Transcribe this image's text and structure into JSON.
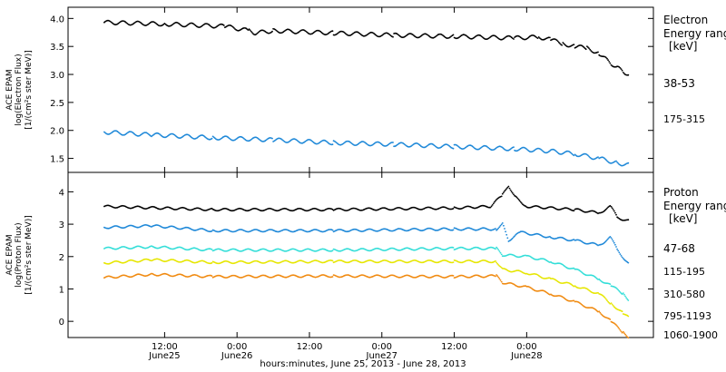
{
  "chart_data": [
    {
      "type": "scatter",
      "panel": "electron",
      "ylabel_lines": [
        "ACE EPAM",
        "log(Electron Flux)",
        "[1/(cm²s ster MeV)]"
      ],
      "ylim": [
        1.25,
        4.2
      ],
      "yticks": [
        1.5,
        2.0,
        2.5,
        3.0,
        3.5,
        4.0
      ],
      "ytick_labels": [
        "1.5",
        "2.0",
        "2.5",
        "3.0",
        "3.5",
        "4.0"
      ],
      "legend_title_lines": [
        "Electron",
        "Energy ranges",
        "[keV]"
      ],
      "series": [
        {
          "name": "38-53",
          "color": "#000000",
          "points": [
            [
              2,
              3.93
            ],
            [
              12,
              3.9
            ],
            [
              22,
              3.86
            ],
            [
              26,
              3.78
            ],
            [
              27,
              3.74
            ],
            [
              30,
              3.78
            ],
            [
              40,
              3.74
            ],
            [
              50,
              3.7
            ],
            [
              60,
              3.68
            ],
            [
              70,
              3.65
            ],
            [
              74,
              3.67
            ],
            [
              76,
              3.62
            ],
            [
              78,
              3.55
            ],
            [
              80,
              3.5
            ],
            [
              82,
              3.47
            ],
            [
              84,
              3.38
            ],
            [
              85,
              3.28
            ],
            [
              86,
              3.2
            ],
            [
              87,
              3.12
            ],
            [
              88,
              3.05
            ],
            [
              89,
              3.0
            ]
          ]
        },
        {
          "name": "175-315",
          "color": "#1e88d8",
          "points": [
            [
              2,
              1.97
            ],
            [
              10,
              1.92
            ],
            [
              20,
              1.87
            ],
            [
              30,
              1.83
            ],
            [
              40,
              1.78
            ],
            [
              50,
              1.75
            ],
            [
              60,
              1.71
            ],
            [
              70,
              1.67
            ],
            [
              76,
              1.63
            ],
            [
              80,
              1.58
            ],
            [
              84,
              1.5
            ],
            [
              87,
              1.42
            ],
            [
              89,
              1.38
            ]
          ]
        }
      ]
    },
    {
      "type": "scatter",
      "panel": "proton",
      "ylabel_lines": [
        "ACE EPAM",
        "log(Proton Flux)",
        "[1/(cm²s ster MeV)]"
      ],
      "ylim": [
        -0.5,
        4.6
      ],
      "yticks": [
        0,
        1,
        2,
        3,
        4
      ],
      "ytick_labels": [
        "0",
        "1",
        "2",
        "3",
        "4"
      ],
      "legend_title_lines": [
        "Proton",
        "Energy ranges",
        "[keV]"
      ],
      "series": [
        {
          "name": "47-68",
          "color": "#000000",
          "points": [
            [
              2,
              3.55
            ],
            [
              20,
              3.45
            ],
            [
              40,
              3.45
            ],
            [
              60,
              3.5
            ],
            [
              66,
              3.55
            ],
            [
              68,
              3.9
            ],
            [
              69,
              4.2
            ],
            [
              70,
              3.85
            ],
            [
              72,
              3.55
            ],
            [
              80,
              3.45
            ],
            [
              84,
              3.35
            ],
            [
              86,
              3.55
            ],
            [
              87,
              3.2
            ],
            [
              89,
              3.1
            ]
          ]
        },
        {
          "name": "115-195",
          "color": "#1e88d8",
          "points": [
            [
              2,
              2.9
            ],
            [
              10,
              2.95
            ],
            [
              20,
              2.8
            ],
            [
              40,
              2.8
            ],
            [
              60,
              2.85
            ],
            [
              67,
              2.85
            ],
            [
              68,
              3.0
            ],
            [
              69,
              2.5
            ],
            [
              71,
              2.75
            ],
            [
              76,
              2.6
            ],
            [
              80,
              2.5
            ],
            [
              84,
              2.35
            ],
            [
              86,
              2.6
            ],
            [
              87,
              2.2
            ],
            [
              89,
              1.75
            ]
          ]
        },
        {
          "name": "310-580",
          "color": "#33ded8",
          "points": [
            [
              2,
              2.25
            ],
            [
              10,
              2.3
            ],
            [
              20,
              2.2
            ],
            [
              40,
              2.2
            ],
            [
              60,
              2.25
            ],
            [
              67,
              2.25
            ],
            [
              68,
              2.05
            ],
            [
              72,
              2.0
            ],
            [
              76,
              1.85
            ],
            [
              80,
              1.6
            ],
            [
              84,
              1.3
            ],
            [
              86,
              1.1
            ],
            [
              88,
              0.85
            ],
            [
              89,
              0.65
            ]
          ]
        },
        {
          "name": "795-1193",
          "color": "#e6e600",
          "points": [
            [
              2,
              1.8
            ],
            [
              10,
              1.9
            ],
            [
              20,
              1.82
            ],
            [
              40,
              1.85
            ],
            [
              60,
              1.85
            ],
            [
              67,
              1.85
            ],
            [
              68,
              1.6
            ],
            [
              72,
              1.5
            ],
            [
              76,
              1.3
            ],
            [
              80,
              1.1
            ],
            [
              84,
              0.85
            ],
            [
              86,
              0.55
            ],
            [
              88,
              0.25
            ],
            [
              89,
              0.1
            ]
          ]
        },
        {
          "name": "1060-1900",
          "color": "#f08a10",
          "points": [
            [
              2,
              1.35
            ],
            [
              10,
              1.45
            ],
            [
              20,
              1.38
            ],
            [
              40,
              1.4
            ],
            [
              60,
              1.38
            ],
            [
              67,
              1.4
            ],
            [
              68,
              1.2
            ],
            [
              72,
              1.05
            ],
            [
              76,
              0.85
            ],
            [
              80,
              0.6
            ],
            [
              84,
              0.3
            ],
            [
              86,
              0.0
            ],
            [
              88,
              -0.35
            ],
            [
              89,
              -0.5
            ]
          ]
        }
      ]
    }
  ],
  "time_axis": {
    "xlim_hours": [
      -4,
      93
    ],
    "ticks": [
      {
        "hour": 12,
        "time": "12:00",
        "day": "June25"
      },
      {
        "hour": 24,
        "time": "0:00",
        "day": "June26"
      },
      {
        "hour": 36,
        "time": "12:00",
        "day": ""
      },
      {
        "hour": 48,
        "time": "0:00",
        "day": "June27"
      },
      {
        "hour": 60,
        "time": "12:00",
        "day": ""
      },
      {
        "hour": 72,
        "time": "0:00",
        "day": "June28"
      }
    ],
    "xlabel": "hours:minutes, June 25, 2013 - June 28, 2013"
  }
}
